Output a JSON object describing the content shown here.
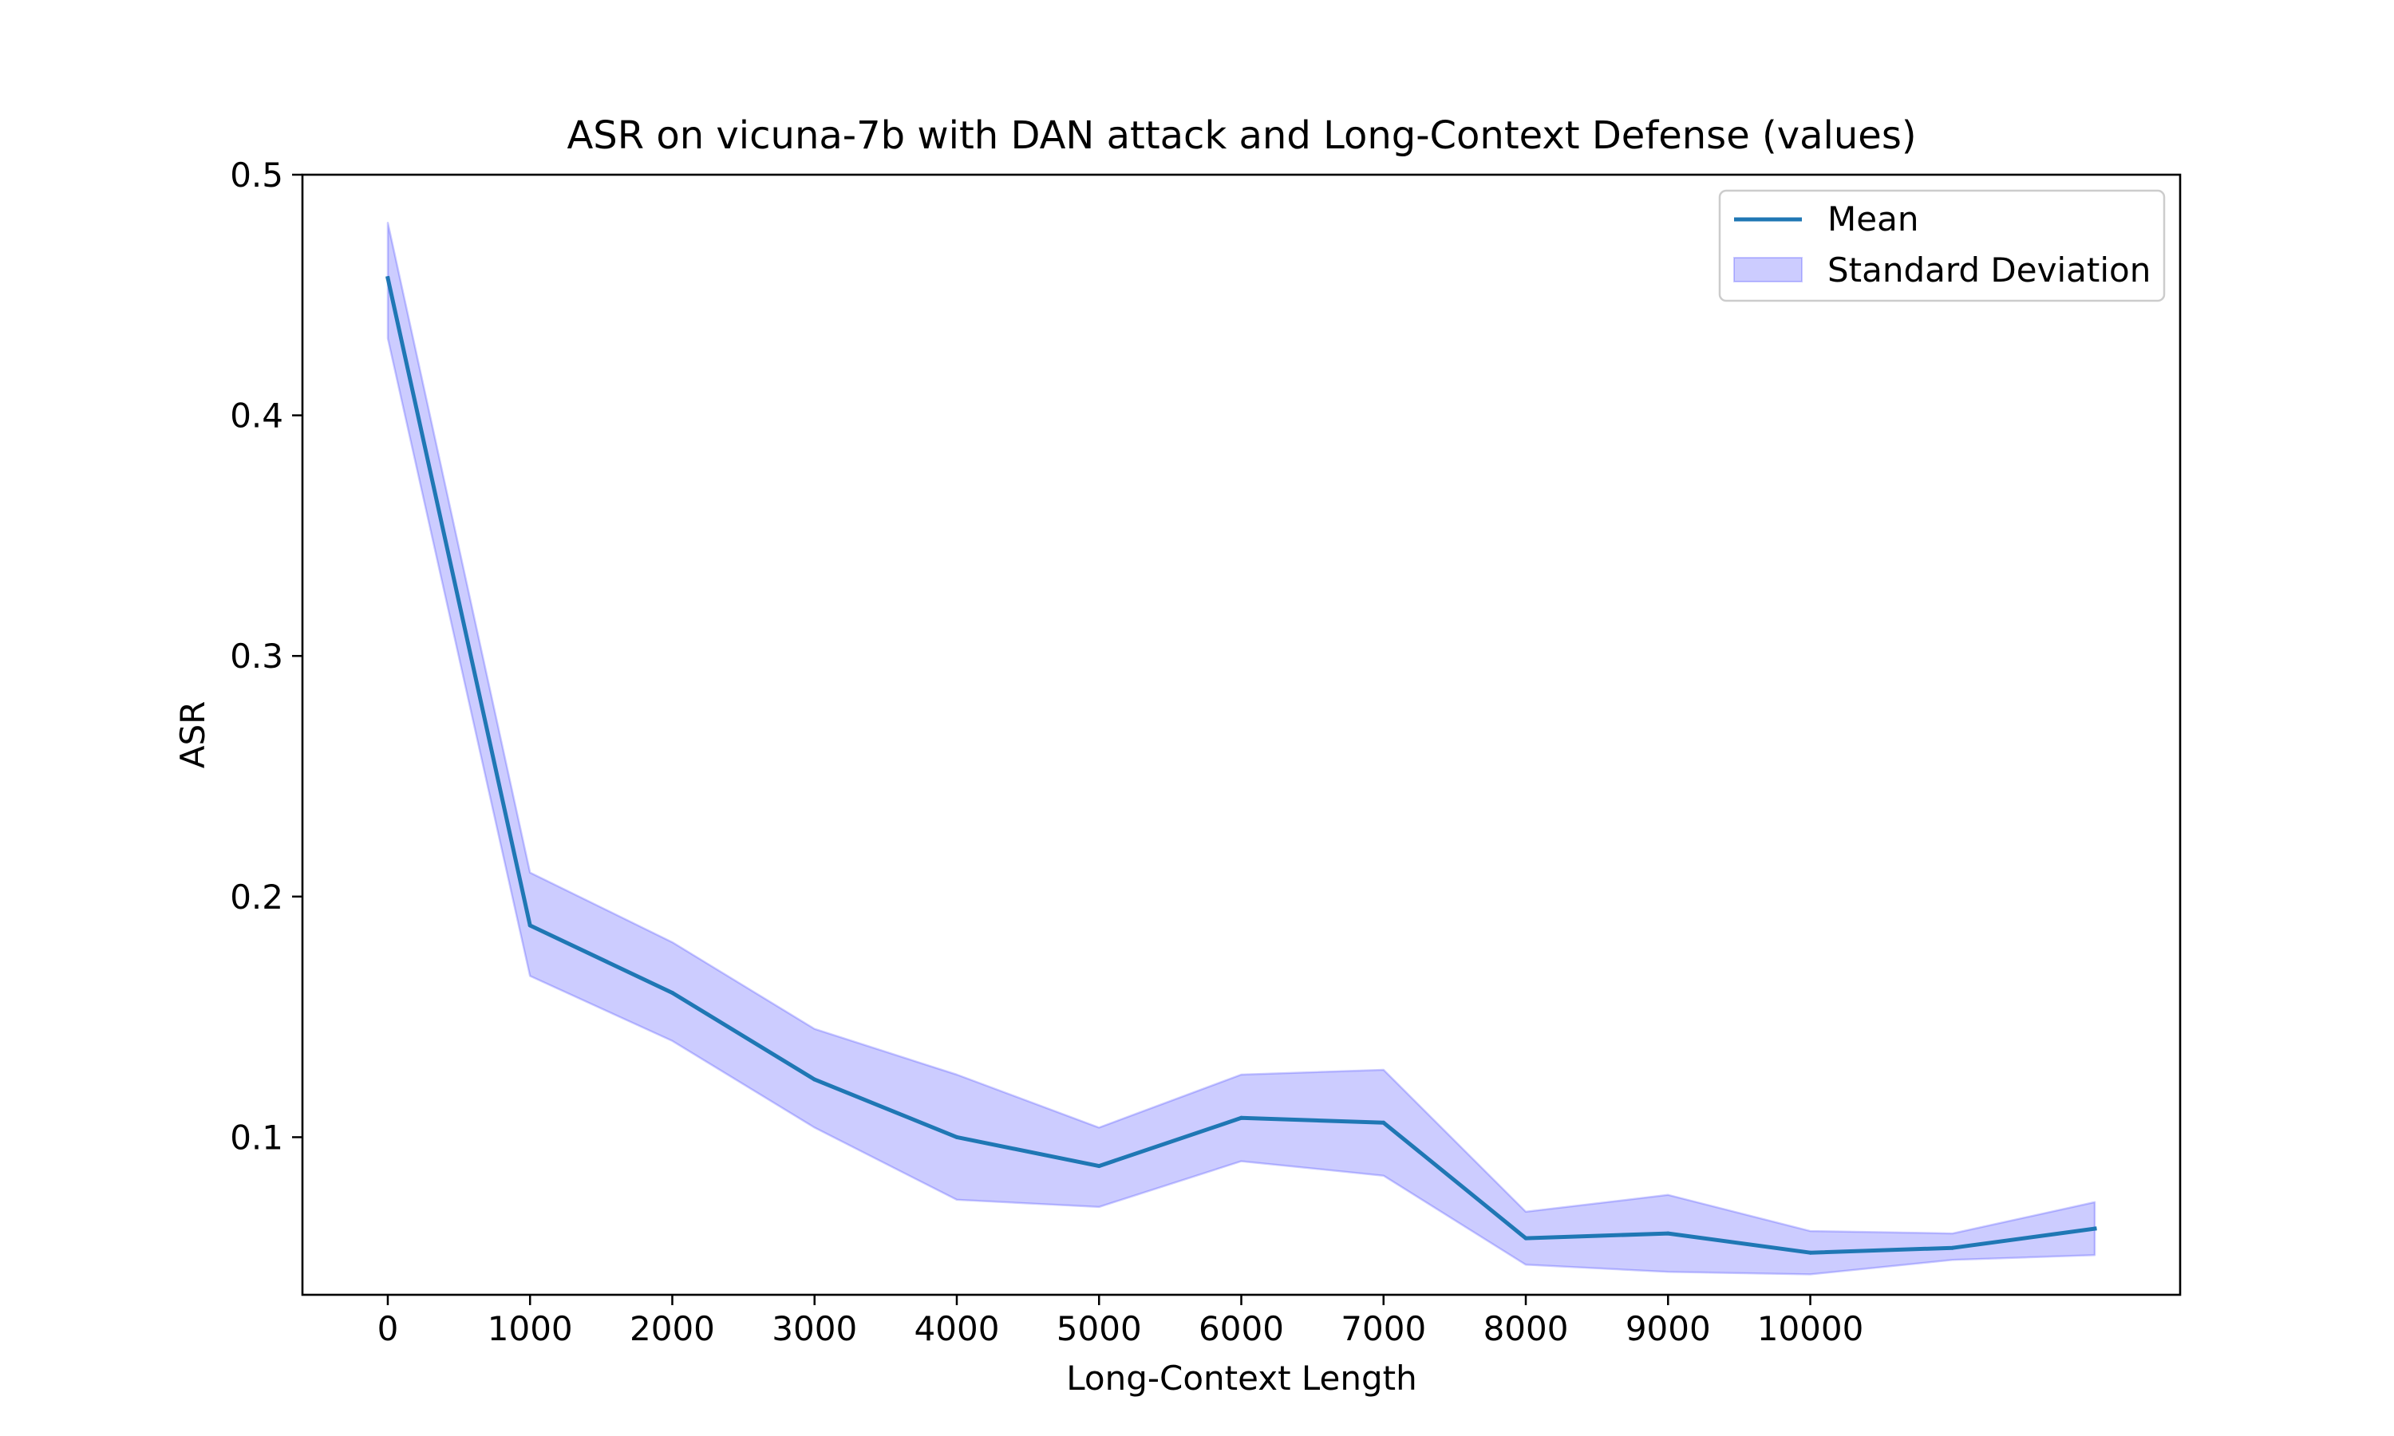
{
  "chart_data": {
    "type": "line",
    "title": "ASR on vicuna-7b with DAN attack and Long-Context Defense (values)",
    "xlabel": "Long-Context Length",
    "ylabel": "ASR",
    "x": [
      0,
      1000,
      2000,
      3000,
      4000,
      5000,
      6000,
      7000,
      8000,
      9000,
      10000,
      11000,
      12000
    ],
    "x_ticks": [
      0,
      1000,
      2000,
      3000,
      4000,
      5000,
      6000,
      7000,
      8000,
      9000,
      10000
    ],
    "x_tick_labels": [
      "0",
      "1000",
      "2000",
      "3000",
      "4000",
      "5000",
      "6000",
      "7000",
      "8000",
      "9000",
      "10000"
    ],
    "y_ticks": [
      0.1,
      0.2,
      0.3,
      0.4,
      0.5
    ],
    "y_tick_labels": [
      "0.1",
      "0.2",
      "0.3",
      "0.4",
      "0.5"
    ],
    "xlim": [
      -600,
      12600
    ],
    "ylim": [
      0.0345,
      0.5
    ],
    "grid": false,
    "legend_position": "top-right",
    "series": [
      {
        "name": "Mean",
        "kind": "line",
        "color": "#1f77b4",
        "values": [
          0.457,
          0.188,
          0.16,
          0.124,
          0.1,
          0.088,
          0.108,
          0.106,
          0.058,
          0.06,
          0.052,
          0.054,
          0.062
        ]
      },
      {
        "name": "Standard Deviation",
        "kind": "band",
        "color": "#0000ff",
        "opacity": 0.2,
        "upper": [
          0.48,
          0.21,
          0.181,
          0.145,
          0.126,
          0.104,
          0.126,
          0.128,
          0.069,
          0.076,
          0.061,
          0.06,
          0.073
        ],
        "lower": [
          0.432,
          0.167,
          0.14,
          0.104,
          0.074,
          0.071,
          0.09,
          0.084,
          0.047,
          0.044,
          0.043,
          0.049,
          0.051
        ]
      }
    ]
  }
}
